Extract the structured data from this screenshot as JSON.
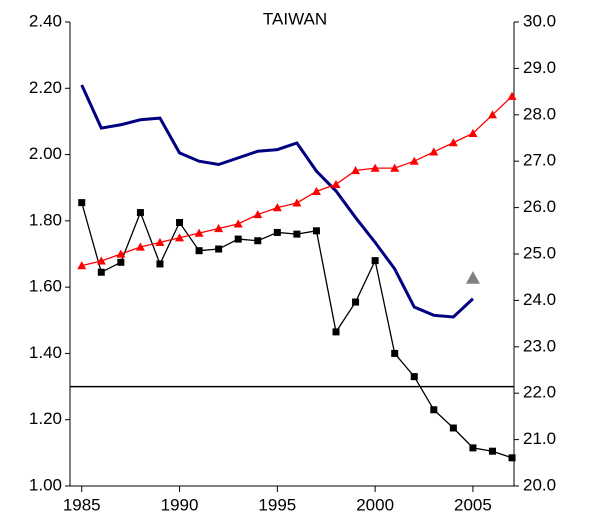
{
  "chart_data": {
    "type": "line",
    "title": "TAIWAN",
    "xlim": [
      1984.4,
      2007.1
    ],
    "xticks": [
      1985,
      1990,
      1995,
      2000,
      2005
    ],
    "ylim": [
      1.0,
      2.4
    ],
    "yticks": [
      {
        "value": 1.0,
        "label": "1.00"
      },
      {
        "value": 1.2,
        "label": "1.20"
      },
      {
        "value": 1.4,
        "label": "1.40"
      },
      {
        "value": 1.6,
        "label": "1.60"
      },
      {
        "value": 1.8,
        "label": "1.80"
      },
      {
        "value": 2.0,
        "label": "2.00"
      },
      {
        "value": 2.2,
        "label": "2.20"
      },
      {
        "value": 2.4,
        "label": "2.40"
      }
    ],
    "y2lim": [
      20,
      30
    ],
    "y2ticks": [
      {
        "value": 20,
        "label": "20.0"
      },
      {
        "value": 21,
        "label": "21.0"
      },
      {
        "value": 22,
        "label": "22.0"
      },
      {
        "value": 23,
        "label": "23.0"
      },
      {
        "value": 24,
        "label": "24.0"
      },
      {
        "value": 25,
        "label": "25.0"
      },
      {
        "value": 26,
        "label": "26.0"
      },
      {
        "value": 27,
        "label": "27.0"
      },
      {
        "value": 28,
        "label": "28.0"
      },
      {
        "value": 29,
        "label": "29.0"
      },
      {
        "value": 30,
        "label": "30.0"
      }
    ],
    "reference_line": {
      "value": 1.3,
      "color": "#000000"
    },
    "series": [
      {
        "color": "#000080",
        "marker": "none",
        "width": 3,
        "x": [
          1985,
          1986,
          1987,
          1988,
          1989,
          1990,
          1991,
          1992,
          1993,
          1994,
          1995,
          1996,
          1997,
          1998,
          1999,
          2000,
          2001,
          2002,
          2003,
          2004,
          2005
        ],
        "values": [
          2.21,
          2.08,
          2.09,
          2.105,
          2.11,
          2.005,
          1.98,
          1.97,
          1.99,
          2.01,
          2.015,
          2.035,
          1.95,
          1.89,
          1.81,
          1.735,
          1.655,
          1.54,
          1.515,
          1.51,
          1.565
        ]
      },
      {
        "color": "#000000",
        "marker": "square",
        "width": 1.3,
        "x": [
          1985,
          1986,
          1987,
          1988,
          1989,
          1990,
          1991,
          1992,
          1993,
          1994,
          1995,
          1996,
          1997,
          1998,
          1999,
          2000,
          2001,
          2002,
          2003,
          2004,
          2005,
          2006,
          2007
        ],
        "values": [
          1.855,
          1.645,
          1.675,
          1.825,
          1.67,
          1.795,
          1.71,
          1.715,
          1.745,
          1.74,
          1.765,
          1.76,
          1.77,
          1.465,
          1.555,
          1.68,
          1.4,
          1.33,
          1.23,
          1.175,
          1.115,
          1.105,
          1.085
        ]
      },
      {
        "color": "#ff0000",
        "marker": "triangle",
        "width": 1.3,
        "axis": "y2",
        "x": [
          1985,
          1986,
          1987,
          1988,
          1989,
          1990,
          1991,
          1992,
          1993,
          1994,
          1995,
          1996,
          1997,
          1998,
          1999,
          2000,
          2001,
          2002,
          2003,
          2004,
          2005,
          2006,
          2007
        ],
        "values": [
          24.75,
          24.85,
          25.0,
          25.15,
          25.25,
          25.35,
          25.45,
          25.55,
          25.65,
          25.85,
          26.0,
          26.1,
          26.35,
          26.5,
          26.8,
          26.85,
          26.85,
          27.0,
          27.2,
          27.4,
          27.6,
          28.0,
          28.4
        ]
      },
      {
        "color": "#808080",
        "marker": "triangle",
        "width": 0,
        "axis": "y2",
        "x": [
          2005
        ],
        "values": [
          24.48
        ]
      }
    ]
  }
}
